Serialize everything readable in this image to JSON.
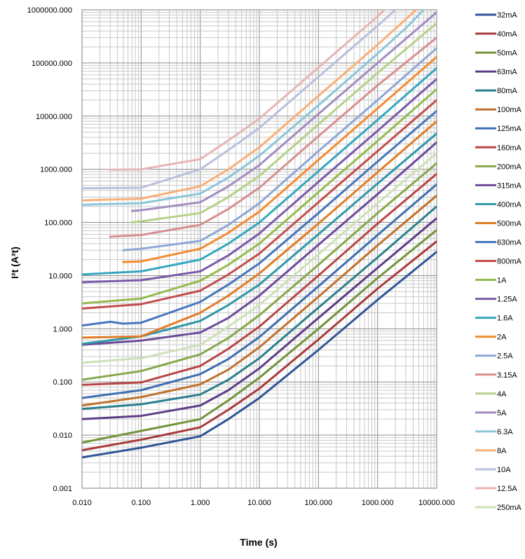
{
  "chart_data": {
    "type": "line",
    "title": "",
    "xlabel": "Time (s)",
    "ylabel": "I²t (A²t)",
    "x_scale": "log",
    "y_scale": "log",
    "xlim": [
      0.01,
      10000
    ],
    "ylim": [
      0.001,
      1000000
    ],
    "grid": true,
    "legend_position": "right",
    "x_ticks": [
      "0.010",
      "0.100",
      "1.000",
      "10.000",
      "100.000",
      "1000.000",
      "10000.000"
    ],
    "y_ticks": [
      "0.001",
      "0.010",
      "0.100",
      "1.000",
      "10.000",
      "100.000",
      "1000.000",
      "10000.000",
      "100000.000",
      "1000000.000"
    ],
    "series": [
      {
        "name": "32mA",
        "color": "#2f5597",
        "points": [
          [
            0.01,
            0.0038
          ],
          [
            0.1,
            0.0058
          ],
          [
            1,
            0.0095
          ],
          [
            3,
            0.02
          ],
          [
            10,
            0.05
          ],
          [
            100,
            0.4
          ],
          [
            1000,
            3.5
          ],
          [
            10000,
            28
          ]
        ]
      },
      {
        "name": "40mA",
        "color": "#a93a3a",
        "points": [
          [
            0.01,
            0.0052
          ],
          [
            0.1,
            0.0082
          ],
          [
            1,
            0.014
          ],
          [
            3,
            0.03
          ],
          [
            10,
            0.075
          ],
          [
            100,
            0.63
          ],
          [
            1000,
            5.7
          ],
          [
            10000,
            44
          ]
        ]
      },
      {
        "name": "50mA",
        "color": "#72943a",
        "points": [
          [
            0.01,
            0.0072
          ],
          [
            0.1,
            0.012
          ],
          [
            1,
            0.02
          ],
          [
            3,
            0.045
          ],
          [
            10,
            0.12
          ],
          [
            100,
            1.0
          ],
          [
            1000,
            9
          ],
          [
            10000,
            72
          ]
        ]
      },
      {
        "name": "63mA",
        "color": "#5e3d86",
        "points": [
          [
            0.01,
            0.02
          ],
          [
            0.1,
            0.023
          ],
          [
            1,
            0.036
          ],
          [
            3,
            0.07
          ],
          [
            10,
            0.18
          ],
          [
            100,
            1.6
          ],
          [
            1000,
            14
          ],
          [
            10000,
            120
          ]
        ]
      },
      {
        "name": "80mA",
        "color": "#2a7f8c",
        "points": [
          [
            0.01,
            0.031
          ],
          [
            0.1,
            0.038
          ],
          [
            1,
            0.058
          ],
          [
            3,
            0.11
          ],
          [
            10,
            0.28
          ],
          [
            100,
            2.5
          ],
          [
            1000,
            22
          ],
          [
            10000,
            200
          ]
        ]
      },
      {
        "name": "100mA",
        "color": "#c0702a",
        "points": [
          [
            0.01,
            0.036
          ],
          [
            0.1,
            0.052
          ],
          [
            1,
            0.09
          ],
          [
            3,
            0.17
          ],
          [
            10,
            0.45
          ],
          [
            100,
            4
          ],
          [
            1000,
            37
          ],
          [
            10000,
            320
          ]
        ]
      },
      {
        "name": "125mA",
        "color": "#3d6fb0",
        "points": [
          [
            0.01,
            0.05
          ],
          [
            0.1,
            0.07
          ],
          [
            1,
            0.14
          ],
          [
            3,
            0.27
          ],
          [
            10,
            0.7
          ],
          [
            100,
            6.3
          ],
          [
            1000,
            58
          ],
          [
            10000,
            520
          ]
        ]
      },
      {
        "name": "160mA",
        "color": "#b84545",
        "points": [
          [
            0.01,
            0.088
          ],
          [
            0.1,
            0.098
          ],
          [
            1,
            0.2
          ],
          [
            3,
            0.42
          ],
          [
            10,
            1.1
          ],
          [
            100,
            10
          ],
          [
            1000,
            95
          ],
          [
            10000,
            820
          ]
        ]
      },
      {
        "name": "200mA",
        "color": "#86a84a",
        "points": [
          [
            0.01,
            0.11
          ],
          [
            0.1,
            0.16
          ],
          [
            1,
            0.33
          ],
          [
            3,
            0.67
          ],
          [
            10,
            1.8
          ],
          [
            100,
            16
          ],
          [
            1000,
            150
          ],
          [
            10000,
            1300
          ]
        ]
      },
      {
        "name": "315mA",
        "color": "#6d4a99",
        "points": [
          [
            0.01,
            0.5
          ],
          [
            0.1,
            0.6
          ],
          [
            1,
            0.85
          ],
          [
            3,
            1.6
          ],
          [
            10,
            4.2
          ],
          [
            100,
            38
          ],
          [
            1000,
            340
          ],
          [
            10000,
            3200
          ]
        ]
      },
      {
        "name": "400mA",
        "color": "#2f97a8",
        "points": [
          [
            0.01,
            0.52
          ],
          [
            0.1,
            0.72
          ],
          [
            1,
            1.4
          ],
          [
            3,
            2.8
          ],
          [
            10,
            6.8
          ],
          [
            100,
            60
          ],
          [
            1000,
            540
          ],
          [
            10000,
            4700
          ]
        ]
      },
      {
        "name": "500mA",
        "color": "#e07d28",
        "points": [
          [
            0.01,
            0.68
          ],
          [
            0.1,
            0.72
          ],
          [
            1,
            2.0
          ],
          [
            3,
            4.2
          ],
          [
            10,
            11
          ],
          [
            100,
            95
          ],
          [
            1000,
            880
          ],
          [
            10000,
            8000
          ]
        ]
      },
      {
        "name": "630mA",
        "color": "#4676bd",
        "points": [
          [
            0.01,
            1.15
          ],
          [
            0.03,
            1.35
          ],
          [
            0.05,
            1.25
          ],
          [
            0.1,
            1.3
          ],
          [
            1,
            3.2
          ],
          [
            3,
            6.8
          ],
          [
            10,
            17
          ],
          [
            100,
            150
          ],
          [
            1000,
            1400
          ],
          [
            10000,
            12500
          ]
        ]
      },
      {
        "name": "800mA",
        "color": "#c24d4d",
        "points": [
          [
            0.01,
            2.4
          ],
          [
            0.1,
            2.9
          ],
          [
            1,
            5.2
          ],
          [
            3,
            10.5
          ],
          [
            10,
            26
          ],
          [
            100,
            240
          ],
          [
            1000,
            2200
          ],
          [
            10000,
            20000
          ]
        ]
      },
      {
        "name": "1A",
        "color": "#94bb4d",
        "points": [
          [
            0.01,
            3.0
          ],
          [
            0.1,
            3.7
          ],
          [
            1,
            8
          ],
          [
            3,
            16
          ],
          [
            10,
            40
          ],
          [
            100,
            370
          ],
          [
            1000,
            3400
          ],
          [
            10000,
            32000
          ]
        ]
      },
      {
        "name": "1.25A",
        "color": "#7b59a8",
        "points": [
          [
            0.01,
            7.5
          ],
          [
            0.1,
            8.2
          ],
          [
            1,
            12
          ],
          [
            3,
            24
          ],
          [
            10,
            62
          ],
          [
            100,
            580
          ],
          [
            1000,
            5300
          ],
          [
            10000,
            50000
          ]
        ]
      },
      {
        "name": "1.6A",
        "color": "#36a6bf",
        "points": [
          [
            0.01,
            10.5
          ],
          [
            0.1,
            12
          ],
          [
            1,
            20
          ],
          [
            3,
            40
          ],
          [
            10,
            100
          ],
          [
            100,
            920
          ],
          [
            1000,
            8500
          ],
          [
            10000,
            80000
          ]
        ]
      },
      {
        "name": "2A",
        "color": "#f28c33",
        "points": [
          [
            0.05,
            18
          ],
          [
            0.1,
            18.5
          ],
          [
            1,
            32
          ],
          [
            3,
            64
          ],
          [
            10,
            160
          ],
          [
            100,
            1500
          ],
          [
            1000,
            14000
          ],
          [
            10000,
            130000
          ]
        ]
      },
      {
        "name": "2.5A",
        "color": "#8fa7d6",
        "points": [
          [
            0.05,
            30
          ],
          [
            0.1,
            32
          ],
          [
            1,
            45
          ],
          [
            3,
            90
          ],
          [
            10,
            230
          ],
          [
            100,
            2200
          ],
          [
            1000,
            20000
          ],
          [
            10000,
            190000
          ]
        ]
      },
      {
        "name": "3.15A",
        "color": "#d68f8f",
        "points": [
          [
            0.03,
            54
          ],
          [
            0.1,
            58
          ],
          [
            1,
            90
          ],
          [
            3,
            180
          ],
          [
            10,
            450
          ],
          [
            100,
            4200
          ],
          [
            1000,
            38000
          ],
          [
            10000,
            300000
          ]
        ]
      },
      {
        "name": "4A",
        "color": "#b5d188",
        "points": [
          [
            0.07,
            100
          ],
          [
            0.1,
            105
          ],
          [
            1,
            150
          ],
          [
            3,
            300
          ],
          [
            10,
            750
          ],
          [
            100,
            7000
          ],
          [
            1000,
            65000
          ],
          [
            10000,
            560000
          ]
        ]
      },
      {
        "name": "5A",
        "color": "#a18dc2",
        "points": [
          [
            0.07,
            165
          ],
          [
            0.1,
            170
          ],
          [
            1,
            240
          ],
          [
            3,
            480
          ],
          [
            10,
            1200
          ],
          [
            100,
            11000
          ],
          [
            1000,
            100000
          ],
          [
            10000,
            900000
          ]
        ]
      },
      {
        "name": "6.3A",
        "color": "#8cc6d8",
        "points": [
          [
            0.01,
            215
          ],
          [
            0.1,
            230
          ],
          [
            1,
            350
          ],
          [
            3,
            700
          ],
          [
            10,
            1800
          ],
          [
            100,
            16000
          ],
          [
            1000,
            150000
          ],
          [
            3000,
            450000
          ],
          [
            6000,
            1000000
          ]
        ]
      },
      {
        "name": "8A",
        "color": "#f7b07a",
        "points": [
          [
            0.01,
            260
          ],
          [
            0.1,
            280
          ],
          [
            1,
            480
          ],
          [
            3,
            1000
          ],
          [
            10,
            2600
          ],
          [
            100,
            24000
          ],
          [
            1000,
            220000
          ],
          [
            4500,
            1000000
          ]
        ]
      },
      {
        "name": "10A",
        "color": "#b9c0dc",
        "points": [
          [
            0.01,
            440
          ],
          [
            0.1,
            450
          ],
          [
            1,
            1000
          ],
          [
            3,
            2300
          ],
          [
            10,
            6000
          ],
          [
            100,
            55000
          ],
          [
            1000,
            500000
          ],
          [
            2000,
            1000000
          ]
        ]
      },
      {
        "name": "12.5A",
        "color": "#e8b5b5",
        "points": [
          [
            0.03,
            980
          ],
          [
            0.1,
            1000
          ],
          [
            1,
            1550
          ],
          [
            3,
            3500
          ],
          [
            10,
            9000
          ],
          [
            100,
            82000
          ],
          [
            1000,
            750000
          ],
          [
            1300,
            1000000
          ]
        ]
      },
      {
        "name": "250mA",
        "color": "#cde0b6",
        "points": [
          [
            0.01,
            0.23
          ],
          [
            0.1,
            0.28
          ],
          [
            1,
            0.5
          ],
          [
            3,
            1.1
          ],
          [
            10,
            2.8
          ],
          [
            100,
            25
          ],
          [
            1000,
            230
          ],
          [
            10000,
            2000
          ]
        ]
      }
    ]
  }
}
